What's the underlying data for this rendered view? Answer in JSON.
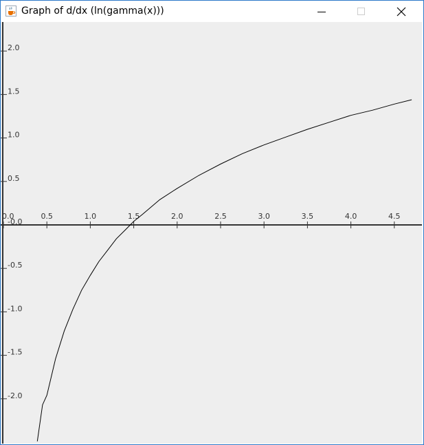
{
  "window": {
    "title": "Graph of d/dx (ln(gamma(x)))",
    "icons": {
      "app": "java-cup-icon",
      "minimize": "minimize-icon",
      "maximize": "maximize-icon",
      "close": "close-icon"
    }
  },
  "chart_data": {
    "type": "line",
    "title": "",
    "xlabel": "",
    "ylabel": "",
    "xlim": [
      0.0,
      4.85
    ],
    "ylim": [
      -2.5,
      2.35
    ],
    "grid": false,
    "legend": "none",
    "x_ticks": [
      "0.0",
      "0.5",
      "1.0",
      "1.5",
      "2.0",
      "2.5",
      "3.0",
      "3.5",
      "4.0",
      "4.5"
    ],
    "y_ticks": [
      "2.0",
      "1.5",
      "1.0",
      "0.5",
      "-0.0",
      "-0.5",
      "-1.0",
      "-1.5",
      "-2.0"
    ],
    "series": [
      {
        "color": "#000000",
        "x": [
          0.39,
          0.45,
          0.5,
          0.6,
          0.7,
          0.8,
          0.9,
          1.0,
          1.1,
          1.2,
          1.3,
          1.4,
          1.5,
          1.6,
          1.8,
          2.0,
          2.25,
          2.5,
          2.75,
          3.0,
          3.25,
          3.5,
          3.75,
          4.0,
          4.25,
          4.5,
          4.7
        ],
        "y": [
          -2.49,
          -2.07,
          -1.96,
          -1.54,
          -1.22,
          -0.97,
          -0.75,
          -0.58,
          -0.42,
          -0.29,
          -0.16,
          -0.06,
          0.04,
          0.12,
          0.29,
          0.42,
          0.57,
          0.7,
          0.82,
          0.92,
          1.01,
          1.1,
          1.18,
          1.26,
          1.32,
          1.39,
          1.44
        ]
      }
    ]
  }
}
